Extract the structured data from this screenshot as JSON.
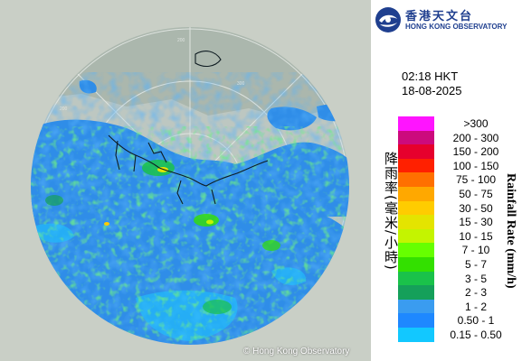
{
  "map": {
    "copyright": "© Hong Kong Observatory",
    "range_ring_labels": [
      "200",
      "300",
      "200"
    ],
    "colors": {
      "outside": "#c9cfc6",
      "coverage": "#bdc7c1",
      "land": "#abb7ad",
      "ring": "#dfe4e0",
      "water": "#4c8fa8"
    }
  },
  "logo": {
    "name_cn": "香港天文台",
    "name_en": "HONG KONG OBSERVATORY",
    "icon": "hong-kong-observatory-logo-icon"
  },
  "time": "02:18 HKT",
  "date": "18-08-2025",
  "legend": {
    "title_cn": "降雨率(毫米/小時)",
    "title_en": "Rainfall Rate (mm/h)",
    "items": [
      {
        "label": ">300",
        "color": "#ff14ff"
      },
      {
        "label": "200 - 300",
        "color": "#cc0a7d"
      },
      {
        "label": "150 - 200",
        "color": "#e6002d"
      },
      {
        "label": "100 - 150",
        "color": "#ff2000"
      },
      {
        "label": "75 - 100",
        "color": "#ff7000"
      },
      {
        "label": "50 - 75",
        "color": "#ffa800"
      },
      {
        "label": "30 - 50",
        "color": "#ffcc00"
      },
      {
        "label": "15 - 30",
        "color": "#e4e400"
      },
      {
        "label": "10 - 15",
        "color": "#c4f400"
      },
      {
        "label": "7 - 10",
        "color": "#66ff00"
      },
      {
        "label": "5 - 7",
        "color": "#33e000"
      },
      {
        "label": "3 - 5",
        "color": "#1ac24a"
      },
      {
        "label": "2 - 3",
        "color": "#15a05a"
      },
      {
        "label": "1 - 2",
        "color": "#3a9cf0"
      },
      {
        "label": "0.50 - 1",
        "color": "#1e88ff"
      },
      {
        "label": "0.15 - 0.50",
        "color": "#12c8ff"
      }
    ]
  }
}
